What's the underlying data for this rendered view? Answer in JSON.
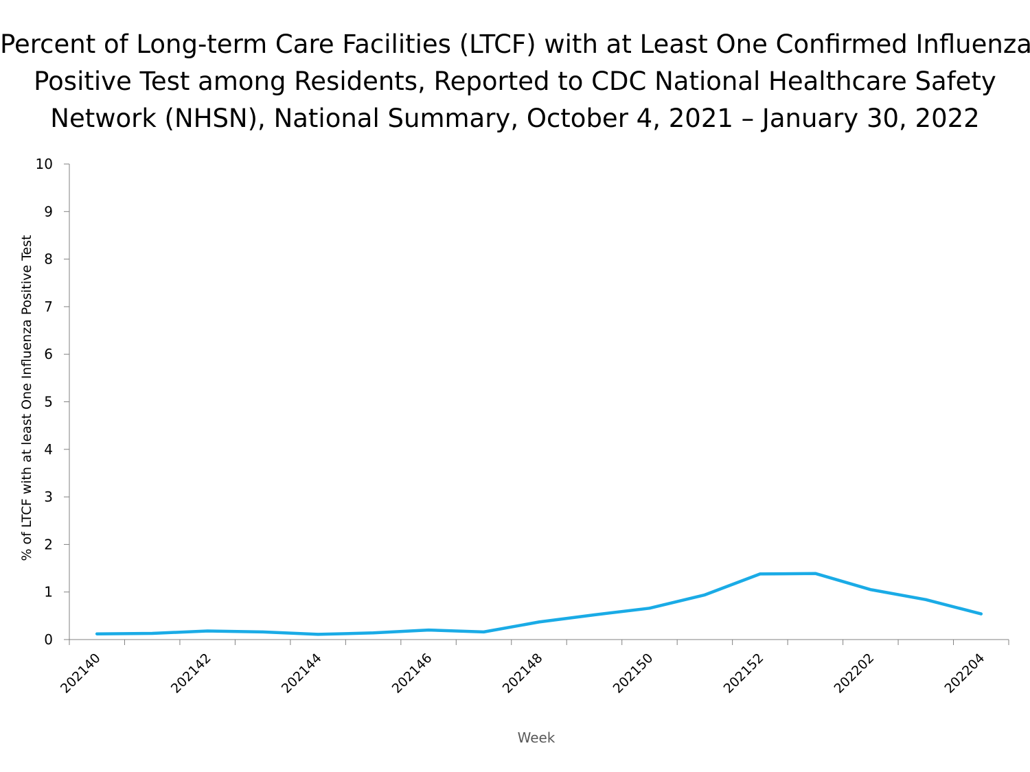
{
  "chart_data": {
    "type": "line",
    "title_lines": [
      "Percent of Long-term Care Facilities (LTCF) with at Least One Confirmed Influenza",
      "Positive Test among Residents, Reported to CDC National Healthcare Safety",
      "Network (NHSN), National Summary, October 4, 2021 – January 30, 2022"
    ],
    "xlabel": "Week",
    "ylabel": "% of LTCF with at least One Influenza Positive Test",
    "ylim": [
      0,
      10
    ],
    "yticks": [
      "0",
      "1",
      "2",
      "3",
      "4",
      "5",
      "6",
      "7",
      "8",
      "9",
      "10"
    ],
    "categories": [
      "202140",
      "202141",
      "202142",
      "202143",
      "202144",
      "202145",
      "202146",
      "202147",
      "202148",
      "202149",
      "202150",
      "202151",
      "202152",
      "202201",
      "202202",
      "202203",
      "202204"
    ],
    "xtick_labels": [
      "202140",
      "202142",
      "202144",
      "202146",
      "202148",
      "202150",
      "202152",
      "202202",
      "202204"
    ],
    "series": [
      {
        "name": "% of LTCF with at least One Influenza Positive Test",
        "color": "#1AABE6",
        "values": [
          0.12,
          0.13,
          0.18,
          0.16,
          0.11,
          0.14,
          0.2,
          0.16,
          0.37,
          0.52,
          0.66,
          0.94,
          1.38,
          1.39,
          1.05,
          0.84,
          0.54
        ]
      }
    ],
    "grid": false
  }
}
